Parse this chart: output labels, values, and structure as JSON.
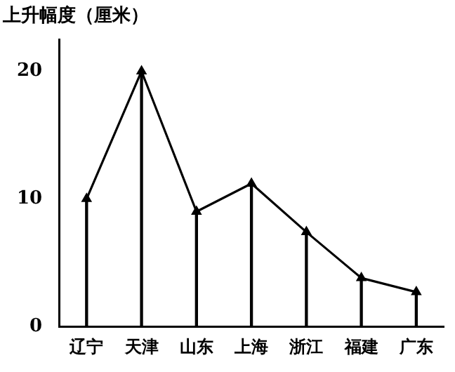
{
  "chart_data": {
    "type": "line",
    "ylabel": "上升幅度（厘米）",
    "categories": [
      "辽宁",
      "天津",
      "山东",
      "上海",
      "浙江",
      "福建",
      "广东"
    ],
    "series": [
      {
        "color": "#000000",
        "values": [
          10,
          20,
          9,
          11.2,
          7.4,
          3.8,
          2.7
        ]
      },
      {
        "type": "lollipop",
        "marker": "triangle",
        "color": "#000000",
        "values": [
          10,
          20,
          9,
          11.2,
          7.4,
          3.8,
          2.7
        ]
      }
    ],
    "ylim": [
      0,
      22.5
    ],
    "yticks": [
      0,
      10,
      20
    ],
    "grid": false,
    "legend": false,
    "marker": "none",
    "line_style": "solid"
  }
}
